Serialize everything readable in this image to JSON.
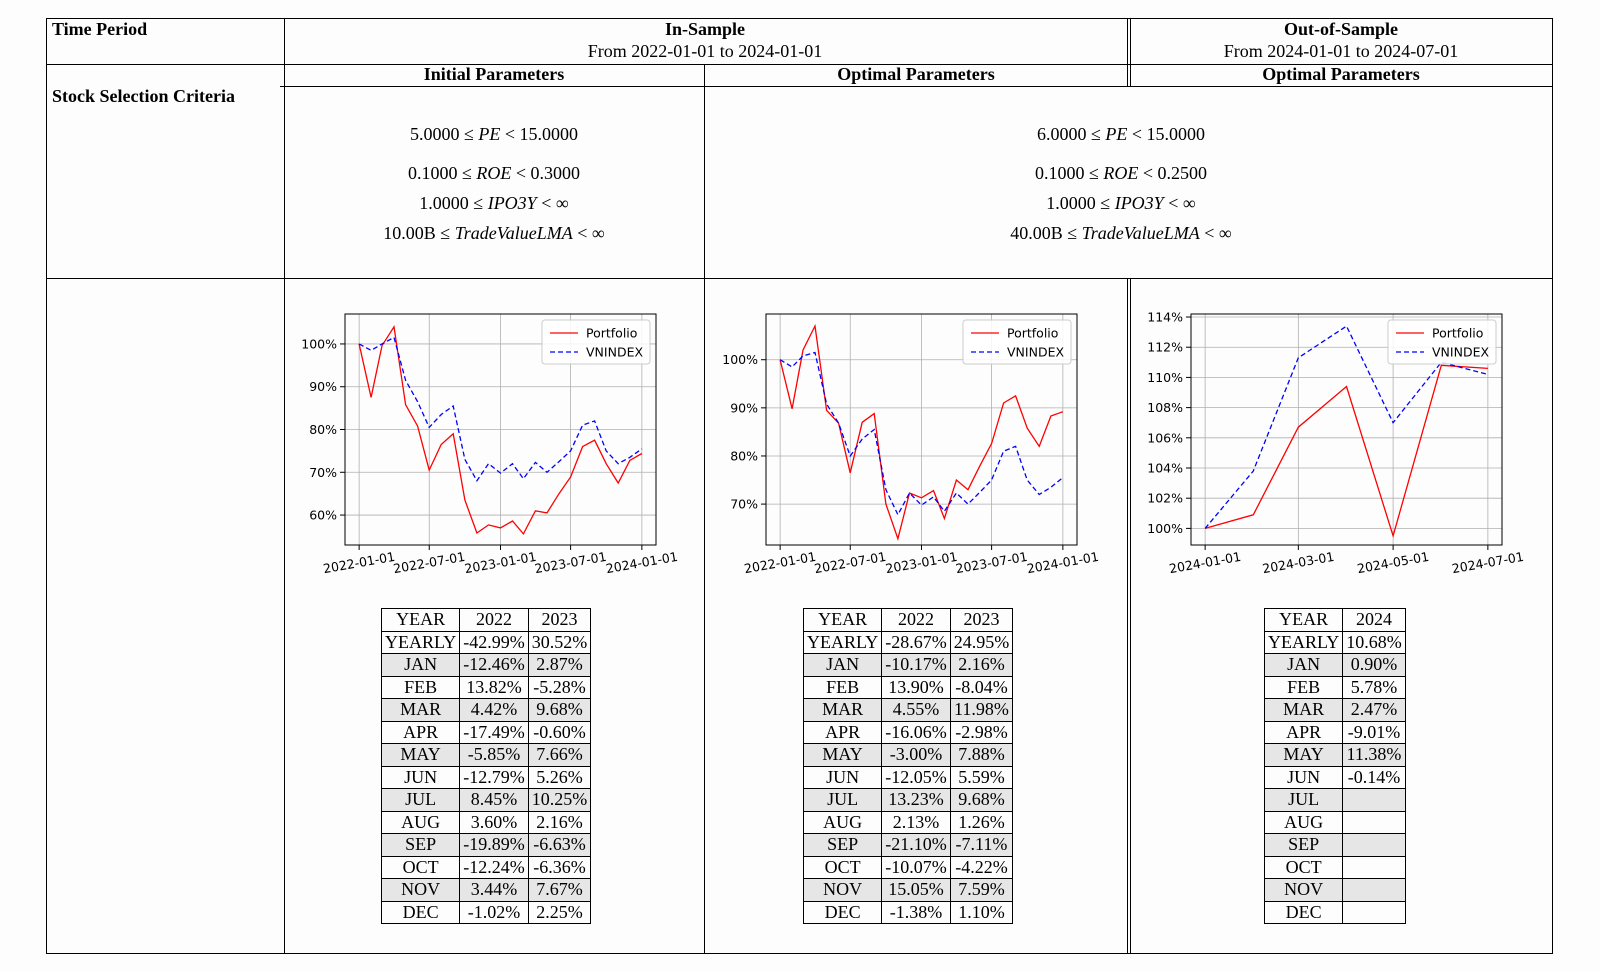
{
  "header": {
    "time_period": "Time Period",
    "in_sample_title": "In-Sample",
    "in_sample_range": "From 2022-01-01 to 2024-01-01",
    "out_sample_title": "Out-of-Sample",
    "out_sample_range": "From 2024-01-01 to 2024-07-01",
    "initial_params": "Initial Parameters",
    "optimal_params": "Optimal Parameters",
    "optimal_params_oos": "Optimal Parameters"
  },
  "criteria": {
    "label": "Stock Selection Criteria",
    "initial": {
      "pe_low": "5.0000",
      "pe_high": "15.0000",
      "roe_low": "0.1000",
      "roe_high": "0.3000",
      "ipo_low": "1.0000",
      "tv_low": "10.00B"
    },
    "optimal": {
      "pe_low": "6.0000",
      "pe_high": "15.0000",
      "roe_low": "0.1000",
      "roe_high": "0.2500",
      "ipo_low": "1.0000",
      "tv_low": "40.00B"
    },
    "symbols": {
      "le": "≤",
      "lt": "<",
      "inf": "∞",
      "pe": "PE",
      "roe": "ROE",
      "ipo": "IPO3Y",
      "tv": "TradeValueLMA"
    }
  },
  "chart_data": [
    {
      "type": "line",
      "legend": [
        "Portfolio",
        "VNINDEX"
      ],
      "legend_position": "top-right",
      "grid": true,
      "x_ticks": [
        "2022-01-01",
        "2022-07-01",
        "2023-01-01",
        "2023-07-01",
        "2024-01-01"
      ],
      "y_ticks": [
        "60%",
        "70%",
        "80%",
        "90%",
        "100%"
      ],
      "ylim": [
        53,
        107
      ],
      "x": [
        "2022-01-01",
        "2022-02-01",
        "2022-03-01",
        "2022-04-01",
        "2022-05-01",
        "2022-06-01",
        "2022-07-01",
        "2022-08-01",
        "2022-09-01",
        "2022-10-01",
        "2022-11-01",
        "2022-12-01",
        "2023-01-01",
        "2023-02-01",
        "2023-03-01",
        "2023-04-01",
        "2023-05-01",
        "2023-06-01",
        "2023-07-01",
        "2023-08-01",
        "2023-09-01",
        "2023-10-01",
        "2023-11-01",
        "2023-12-01",
        "2024-01-01"
      ],
      "series": [
        {
          "name": "Portfolio",
          "color": "#ff0000",
          "dash": false,
          "values": [
            100,
            87.5,
            99.6,
            104.0,
            85.8,
            80.8,
            70.5,
            76.5,
            79.0,
            63.5,
            55.8,
            57.7,
            57.0,
            58.6,
            55.6,
            61.0,
            60.5,
            65.0,
            68.9,
            76.0,
            77.5,
            72.0,
            67.5,
            72.8,
            74.4
          ]
        },
        {
          "name": "VNINDEX",
          "color": "#0000ff",
          "dash": true,
          "values": [
            100,
            98.5,
            100.0,
            101.5,
            91.5,
            86.5,
            80.5,
            83.5,
            85.5,
            73.0,
            68.0,
            72.0,
            69.8,
            72.0,
            68.5,
            72.3,
            70.0,
            72.5,
            75.0,
            81.0,
            82.0,
            75.0,
            72.0,
            73.5,
            75.5
          ]
        }
      ]
    },
    {
      "type": "line",
      "legend": [
        "Portfolio",
        "VNINDEX"
      ],
      "legend_position": "top-right",
      "grid": true,
      "x_ticks": [
        "2022-01-01",
        "2022-07-01",
        "2023-01-01",
        "2023-07-01",
        "2024-01-01"
      ],
      "y_ticks": [
        "70%",
        "80%",
        "90%",
        "100%"
      ],
      "ylim": [
        61.5,
        109.5
      ],
      "x": [
        "2022-01-01",
        "2022-02-01",
        "2022-03-01",
        "2022-04-01",
        "2022-05-01",
        "2022-06-01",
        "2022-07-01",
        "2022-08-01",
        "2022-09-01",
        "2022-10-01",
        "2022-11-01",
        "2022-12-01",
        "2023-01-01",
        "2023-02-01",
        "2023-03-01",
        "2023-04-01",
        "2023-05-01",
        "2023-06-01",
        "2023-07-01",
        "2023-08-01",
        "2023-09-01",
        "2023-10-01",
        "2023-11-01",
        "2023-12-01",
        "2024-01-01"
      ],
      "series": [
        {
          "name": "Portfolio",
          "color": "#ff0000",
          "dash": false,
          "values": [
            100,
            89.8,
            102.0,
            107.0,
            89.5,
            86.8,
            76.5,
            87.0,
            88.8,
            70.0,
            62.8,
            72.3,
            71.3,
            72.8,
            67.0,
            75.0,
            73.0,
            78.0,
            82.6,
            91.0,
            92.5,
            85.8,
            82.0,
            88.3,
            89.2
          ]
        },
        {
          "name": "VNINDEX",
          "color": "#0000ff",
          "dash": true,
          "values": [
            100,
            98.5,
            100.8,
            101.5,
            90.8,
            86.8,
            80.0,
            83.5,
            85.5,
            73.0,
            67.8,
            72.3,
            69.8,
            71.5,
            68.5,
            72.3,
            70.0,
            72.5,
            75.0,
            81.0,
            82.0,
            75.0,
            72.0,
            73.5,
            75.5
          ]
        }
      ]
    },
    {
      "type": "line",
      "legend": [
        "Portfolio",
        "VNINDEX"
      ],
      "legend_position": "top-right",
      "grid": true,
      "x_ticks": [
        "2024-01-01",
        "2024-03-01",
        "2024-05-01",
        "2024-07-01"
      ],
      "y_ticks": [
        "100%",
        "102%",
        "104%",
        "106%",
        "108%",
        "110%",
        "112%",
        "114%"
      ],
      "ylim": [
        98.9,
        114.2
      ],
      "x": [
        "2024-01-01",
        "2024-02-01",
        "2024-03-01",
        "2024-04-01",
        "2024-05-01",
        "2024-06-01",
        "2024-07-01"
      ],
      "series": [
        {
          "name": "Portfolio",
          "color": "#ff0000",
          "dash": false,
          "values": [
            100,
            100.9,
            106.7,
            109.4,
            99.5,
            110.8,
            110.6
          ]
        },
        {
          "name": "VNINDEX",
          "color": "#0000ff",
          "dash": true,
          "values": [
            100,
            103.8,
            111.3,
            113.4,
            107.0,
            111.0,
            110.2
          ]
        }
      ]
    }
  ],
  "tables": [
    {
      "headers": [
        "YEAR",
        "2022",
        "2023"
      ],
      "rows": [
        [
          "YEARLY",
          "-42.99%",
          "30.52%"
        ],
        [
          "JAN",
          "-12.46%",
          "2.87%"
        ],
        [
          "FEB",
          "13.82%",
          "-5.28%"
        ],
        [
          "MAR",
          "4.42%",
          "9.68%"
        ],
        [
          "APR",
          "-17.49%",
          "-0.60%"
        ],
        [
          "MAY",
          "-5.85%",
          "7.66%"
        ],
        [
          "JUN",
          "-12.79%",
          "5.26%"
        ],
        [
          "JUL",
          "8.45%",
          "10.25%"
        ],
        [
          "AUG",
          "3.60%",
          "2.16%"
        ],
        [
          "SEP",
          "-19.89%",
          "-6.63%"
        ],
        [
          "OCT",
          "-12.24%",
          "-6.36%"
        ],
        [
          "NOV",
          "3.44%",
          "7.67%"
        ],
        [
          "DEC",
          "-1.02%",
          "2.25%"
        ]
      ]
    },
    {
      "headers": [
        "YEAR",
        "2022",
        "2023"
      ],
      "rows": [
        [
          "YEARLY",
          "-28.67%",
          "24.95%"
        ],
        [
          "JAN",
          "-10.17%",
          "2.16%"
        ],
        [
          "FEB",
          "13.90%",
          "-8.04%"
        ],
        [
          "MAR",
          "4.55%",
          "11.98%"
        ],
        [
          "APR",
          "-16.06%",
          "-2.98%"
        ],
        [
          "MAY",
          "-3.00%",
          "7.88%"
        ],
        [
          "JUN",
          "-12.05%",
          "5.59%"
        ],
        [
          "JUL",
          "13.23%",
          "9.68%"
        ],
        [
          "AUG",
          "2.13%",
          "1.26%"
        ],
        [
          "SEP",
          "-21.10%",
          "-7.11%"
        ],
        [
          "OCT",
          "-10.07%",
          "-4.22%"
        ],
        [
          "NOV",
          "15.05%",
          "7.59%"
        ],
        [
          "DEC",
          "-1.38%",
          "1.10%"
        ]
      ]
    },
    {
      "headers": [
        "YEAR",
        "2024"
      ],
      "rows": [
        [
          "YEARLY",
          "10.68%"
        ],
        [
          "JAN",
          "0.90%"
        ],
        [
          "FEB",
          "5.78%"
        ],
        [
          "MAR",
          "2.47%"
        ],
        [
          "APR",
          "-9.01%"
        ],
        [
          "MAY",
          "11.38%"
        ],
        [
          "JUN",
          "-0.14%"
        ],
        [
          "JUL",
          ""
        ],
        [
          "AUG",
          ""
        ],
        [
          "SEP",
          ""
        ],
        [
          "OCT",
          ""
        ],
        [
          "NOV",
          ""
        ],
        [
          "DEC",
          ""
        ]
      ]
    }
  ]
}
